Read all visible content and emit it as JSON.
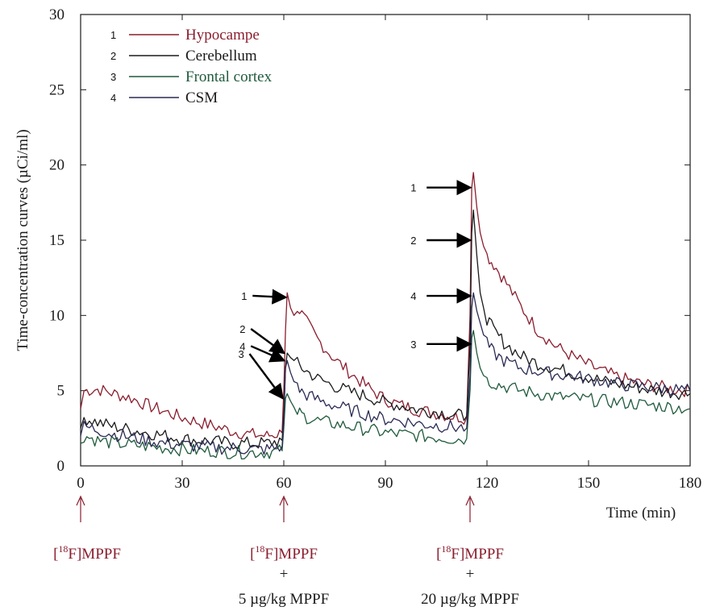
{
  "chart_data": {
    "type": "line",
    "xlabel": "Time (min)",
    "ylabel": "Time-concentration curves (µCi/ml)",
    "xlim": [
      0,
      180
    ],
    "ylim": [
      0,
      30
    ],
    "xticks": [
      "0",
      "30",
      "60",
      "90",
      "120",
      "150",
      "180"
    ],
    "yticks": [
      "0",
      "5",
      "10",
      "15",
      "20",
      "25",
      "30"
    ],
    "grid": false,
    "legend_position": "top-left",
    "series": [
      {
        "id": "1",
        "name": "Hypocampe",
        "color": "#8a1e2e",
        "x": [
          0,
          1,
          5,
          10,
          15,
          20,
          25,
          30,
          35,
          40,
          45,
          50,
          55,
          59.5,
          60,
          60.5,
          61,
          62,
          63,
          64,
          66,
          70,
          75,
          80,
          85,
          90,
          95,
          100,
          105,
          110,
          114,
          115,
          115.5,
          116,
          117,
          118,
          119,
          120,
          122,
          125,
          130,
          135,
          140,
          145,
          150,
          155,
          160,
          165,
          170,
          175,
          180
        ],
        "y": [
          3.8,
          5.0,
          5.1,
          4.8,
          4.5,
          4.0,
          3.6,
          3.2,
          2.9,
          2.6,
          2.3,
          2.1,
          2.0,
          2.2,
          5.0,
          9.0,
          11.5,
          10.5,
          10.0,
          10.6,
          9.8,
          8.4,
          7.1,
          6.1,
          5.2,
          4.4,
          4.0,
          3.7,
          3.5,
          3.3,
          3.2,
          10.0,
          18.5,
          19.5,
          17.2,
          15.5,
          14.6,
          14.0,
          13.4,
          12.4,
          10.6,
          9.0,
          8.0,
          7.3,
          6.7,
          6.2,
          5.8,
          5.5,
          5.3,
          5.1,
          5.0
        ]
      },
      {
        "id": "2",
        "name": "Cerebellum",
        "color": "#1a1a1a",
        "x": [
          0,
          1,
          5,
          10,
          15,
          20,
          25,
          30,
          35,
          40,
          45,
          50,
          55,
          59.5,
          60,
          60.5,
          61,
          62,
          63,
          64,
          66,
          70,
          75,
          80,
          85,
          90,
          95,
          100,
          105,
          110,
          114,
          115,
          115.5,
          116,
          117,
          118,
          119,
          120,
          122,
          125,
          130,
          135,
          140,
          145,
          150,
          155,
          160,
          165,
          170,
          175,
          180
        ],
        "y": [
          2.5,
          3.2,
          2.9,
          2.6,
          2.4,
          2.2,
          2.0,
          1.8,
          1.7,
          1.6,
          1.5,
          1.5,
          1.5,
          1.7,
          3.5,
          6.5,
          7.5,
          7.2,
          7.0,
          6.8,
          6.4,
          5.8,
          5.3,
          4.9,
          4.6,
          4.2,
          4.0,
          3.7,
          3.6,
          3.4,
          3.3,
          8.0,
          15.5,
          17.0,
          14.0,
          11.5,
          10.5,
          9.8,
          9.0,
          8.2,
          7.3,
          6.8,
          6.5,
          6.2,
          5.9,
          5.6,
          5.4,
          5.2,
          5.0,
          4.9,
          4.8
        ]
      },
      {
        "id": "3",
        "name": "Frontal cortex",
        "color": "#1f5a3c",
        "x": [
          0,
          1,
          5,
          10,
          15,
          20,
          25,
          30,
          35,
          40,
          45,
          50,
          55,
          59.5,
          60,
          60.5,
          61,
          62,
          63,
          64,
          66,
          70,
          75,
          80,
          85,
          90,
          95,
          100,
          105,
          110,
          114,
          115,
          115.5,
          116,
          117,
          118,
          119,
          120,
          122,
          125,
          130,
          135,
          140,
          145,
          150,
          155,
          160,
          165,
          170,
          175,
          180
        ],
        "y": [
          1.5,
          2.0,
          1.7,
          1.5,
          1.4,
          1.3,
          1.2,
          1.1,
          1.0,
          1.0,
          0.9,
          0.9,
          0.9,
          1.0,
          2.5,
          4.5,
          4.8,
          4.3,
          3.9,
          3.6,
          3.3,
          3.0,
          2.8,
          2.6,
          2.4,
          2.2,
          2.1,
          2.0,
          1.9,
          1.8,
          1.8,
          5.0,
          8.5,
          9.0,
          7.5,
          6.5,
          6.0,
          5.7,
          5.5,
          5.3,
          5.0,
          4.8,
          4.6,
          4.5,
          4.4,
          4.3,
          4.2,
          4.1,
          4.0,
          3.9,
          3.8
        ]
      },
      {
        "id": "4",
        "name": "CSM",
        "color": "#2a2a55",
        "x": [
          0,
          1,
          5,
          10,
          15,
          20,
          25,
          30,
          35,
          40,
          45,
          50,
          55,
          59.5,
          60,
          60.5,
          61,
          62,
          63,
          64,
          66,
          70,
          75,
          80,
          85,
          90,
          95,
          100,
          105,
          110,
          114,
          115,
          115.5,
          116,
          117,
          118,
          119,
          120,
          122,
          125,
          130,
          135,
          140,
          145,
          150,
          155,
          160,
          165,
          170,
          175,
          180
        ],
        "y": [
          2.0,
          2.6,
          2.4,
          2.1,
          1.9,
          1.7,
          1.5,
          1.4,
          1.3,
          1.2,
          1.2,
          1.1,
          1.1,
          1.3,
          3.0,
          6.5,
          7.0,
          6.2,
          5.6,
          5.2,
          4.8,
          4.4,
          4.0,
          3.7,
          3.4,
          3.1,
          3.0,
          2.8,
          2.7,
          2.6,
          2.5,
          6.0,
          10.5,
          11.5,
          10.3,
          9.5,
          8.7,
          8.1,
          7.5,
          7.0,
          6.5,
          6.3,
          6.1,
          6.0,
          5.8,
          5.6,
          5.4,
          5.3,
          5.2,
          5.1,
          5.0
        ]
      }
    ],
    "peak_labels": [
      {
        "label": "1",
        "x": 61.5,
        "y": 11.2
      },
      {
        "label": "2",
        "x": 61,
        "y": 7.5
      },
      {
        "label": "3",
        "x": 60.6,
        "y": 4.5
      },
      {
        "label": "4",
        "x": 61,
        "y": 7.0
      },
      {
        "label": "1",
        "x": 116,
        "y": 18.5
      },
      {
        "label": "2",
        "x": 116,
        "y": 15.0
      },
      {
        "label": "4",
        "x": 116,
        "y": 11.3
      },
      {
        "label": "3",
        "x": 116,
        "y": 8.1
      }
    ],
    "injections": [
      {
        "x": 0,
        "tracer": "[",
        "sup": "18",
        "tracer_rest": "F]MPPF",
        "plus": "",
        "dose": ""
      },
      {
        "x": 60,
        "tracer": "[",
        "sup": "18",
        "tracer_rest": "F]MPPF",
        "plus": "+",
        "dose": "5 µg/kg MPPF"
      },
      {
        "x": 115,
        "tracer": "[",
        "sup": "18",
        "tracer_rest": "F]MPPF",
        "plus": "+",
        "dose": "20 µg/kg MPPF"
      }
    ],
    "colors": {
      "axis": "#1a1a1a",
      "injection_arrow": "#8a1e2e",
      "injection_text": "#8a1e2e",
      "dose_text": "#1a1a1a"
    }
  }
}
